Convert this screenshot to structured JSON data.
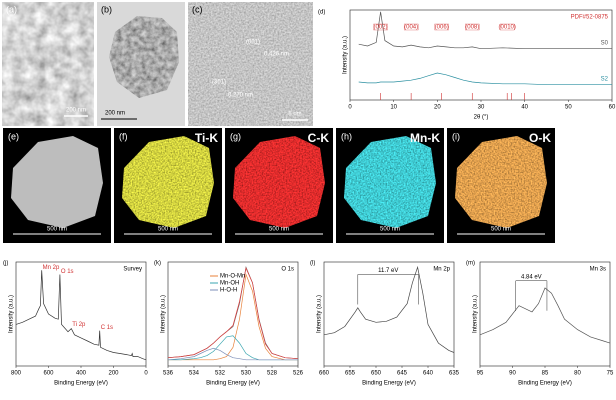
{
  "panels": [
    {
      "label": "(a)",
      "scale": "200 nm"
    },
    {
      "label": "(b)",
      "scale": "200 nm"
    },
    {
      "label": "(c)",
      "scale": "5 nm",
      "annotations": [
        "(001)",
        "0.426 nm",
        "(301)",
        "0.270 nm"
      ]
    },
    {
      "label": "(e)",
      "scale": "500 nm"
    },
    {
      "label": "(f)",
      "element": "Ti-K",
      "scale": "500 nm"
    },
    {
      "label": "(g)",
      "element": "C-K",
      "scale": "500 nm"
    },
    {
      "label": "(h)",
      "element": "Mn-K",
      "scale": "500 nm"
    },
    {
      "label": "(i)",
      "element": "O-K",
      "scale": "500 nm"
    }
  ],
  "chart_data": [
    {
      "type": "line",
      "label": "(d)",
      "reference_label": "PDF#52-0875",
      "x_label": "2θ (°)",
      "y_label": "Intensity (a.u.)",
      "x": [
        2,
        4,
        6,
        7,
        8,
        10,
        12,
        14,
        16,
        18,
        20,
        22,
        24,
        26,
        28,
        30,
        35,
        40,
        45,
        50,
        55,
        60
      ],
      "series": [
        {
          "name": "S0",
          "color": "#555555",
          "values": [
            62,
            60,
            64,
            98,
            66,
            60,
            59,
            61,
            59,
            58,
            60,
            59,
            58,
            58,
            59,
            57,
            58,
            57,
            57,
            57,
            57,
            57
          ]
        },
        {
          "name": "S2",
          "color": "#2a8fa0",
          "values": [
            20,
            19,
            19,
            20,
            20,
            20,
            21,
            22,
            24,
            27,
            30,
            28,
            25,
            22,
            20,
            19,
            18,
            18,
            17,
            17,
            17,
            17
          ]
        }
      ],
      "reference_peaks": [
        7,
        14,
        21,
        28,
        36,
        37,
        40
      ],
      "annotations": [
        {
          "text": "(002)",
          "x": 7
        },
        {
          "text": "(004)",
          "x": 14
        },
        {
          "text": "(006)",
          "x": 21
        },
        {
          "text": "(008)",
          "x": 28
        },
        {
          "text": "(0010)",
          "x": 36
        }
      ],
      "legend": "inline",
      "xlim": [
        0,
        60
      ],
      "xticks": [
        0,
        10,
        20,
        30,
        40,
        50,
        60
      ],
      "ylim": [
        0,
        100
      ]
    },
    {
      "type": "line",
      "label": "(j)",
      "title": "Survey",
      "x_label": "Binding Energy (eV)",
      "y_label": "Intensity (a.u.)",
      "x": [
        800,
        760,
        720,
        680,
        660,
        650,
        642,
        630,
        600,
        560,
        540,
        530,
        520,
        480,
        460,
        440,
        400,
        360,
        320,
        290,
        285,
        280,
        240,
        200,
        160,
        120,
        90,
        85,
        80,
        50,
        20,
        0
      ],
      "series": [
        {
          "color": "#333333",
          "values": [
            40,
            42,
            45,
            48,
            55,
            58,
            92,
            60,
            50,
            46,
            45,
            88,
            40,
            33,
            36,
            30,
            27,
            24,
            21,
            20,
            34,
            18,
            15,
            13,
            12,
            11,
            10,
            12,
            9,
            9,
            7,
            6
          ]
        }
      ],
      "peak_labels": [
        {
          "text": "Mn 2p",
          "x": 642,
          "y": 95
        },
        {
          "text": "O 1s",
          "x": 530,
          "y": 91
        },
        {
          "text": "Ti 2p",
          "x": 460,
          "y": 40
        },
        {
          "text": "C 1s",
          "x": 285,
          "y": 37
        }
      ],
      "xlim": [
        800,
        0
      ],
      "xticks": [
        800,
        600,
        400,
        200,
        0
      ],
      "ylim": [
        0,
        100
      ]
    },
    {
      "type": "line",
      "label": "(k)",
      "title": "O 1s",
      "x_label": "Binding Energy (eV)",
      "y_label": "Intensity (a.u.)",
      "x": [
        536,
        535,
        534,
        533.5,
        533,
        532.5,
        532,
        531.5,
        531,
        530.5,
        530,
        529.5,
        529,
        528.5,
        528,
        527,
        526
      ],
      "series": [
        {
          "color": "#666666",
          "values": [
            8,
            9,
            11,
            14,
            17,
            22,
            28,
            33,
            38,
            60,
            95,
            80,
            45,
            22,
            12,
            8,
            7
          ]
        },
        {
          "name": "Mn-O-Mn",
          "color": "#e8823a",
          "values": [
            6,
            6,
            6,
            6,
            6,
            6,
            7,
            9,
            18,
            45,
            88,
            72,
            38,
            17,
            9,
            6,
            6
          ]
        },
        {
          "name": "Mn-OH",
          "color": "#3aa6b0",
          "values": [
            6,
            6,
            7,
            8,
            10,
            14,
            21,
            28,
            29,
            22,
            12,
            8,
            6,
            6,
            6,
            6,
            6
          ]
        },
        {
          "name": "H-O-H",
          "color": "#7d8fb8",
          "values": [
            6,
            7,
            9,
            12,
            15,
            17,
            15,
            11,
            8,
            7,
            6,
            6,
            6,
            6,
            6,
            6,
            6
          ]
        },
        {
          "color": "#e04040",
          "values": [
            8,
            9,
            11,
            14,
            17,
            22,
            28,
            33,
            39,
            62,
            94,
            80,
            44,
            21,
            12,
            8,
            7
          ]
        }
      ],
      "legend": "upper left",
      "xlim": [
        536,
        526
      ],
      "xticks": [
        536,
        534,
        532,
        530,
        528,
        526
      ],
      "ylim": [
        0,
        100
      ]
    },
    {
      "type": "line",
      "label": "(l)",
      "title": "Mn 2p",
      "x_label": "Binding Energy (eV)",
      "y_label": "Intensity (a.u.)",
      "x": [
        660,
        658,
        656,
        654,
        653.5,
        653,
        652,
        650,
        648,
        646,
        644,
        643,
        642,
        641,
        640,
        638,
        636,
        635
      ],
      "series": [
        {
          "color": "#444444",
          "values": [
            30,
            32,
            38,
            52,
            56,
            52,
            45,
            42,
            43,
            47,
            60,
            80,
            95,
            70,
            40,
            22,
            15,
            13
          ]
        }
      ],
      "brackets": [
        {
          "text": "11.7 eV",
          "x1": 653.5,
          "x2": 641.8,
          "y": 88
        }
      ],
      "xlim": [
        660,
        635
      ],
      "xticks": [
        660,
        655,
        650,
        645,
        640,
        635
      ],
      "ylim": [
        0,
        100
      ]
    },
    {
      "type": "line",
      "label": "(m)",
      "title": "Mn 3s",
      "x_label": "Binding Energy (eV)",
      "y_label": "Intensity (a.u.)",
      "x": [
        95,
        93,
        91,
        89,
        88,
        87,
        86,
        85,
        84,
        83,
        82,
        80,
        78,
        76,
        75
      ],
      "series": [
        {
          "color": "#555555",
          "values": [
            30,
            35,
            42,
            58,
            55,
            52,
            60,
            75,
            70,
            58,
            45,
            35,
            28,
            24,
            22
          ]
        }
      ],
      "brackets": [
        {
          "text": "4.84 eV",
          "x1": 89.5,
          "x2": 84.7,
          "y": 82
        }
      ],
      "xlim": [
        95,
        75
      ],
      "xticks": [
        95,
        90,
        85,
        80,
        75
      ],
      "ylim": [
        0,
        100
      ]
    }
  ]
}
